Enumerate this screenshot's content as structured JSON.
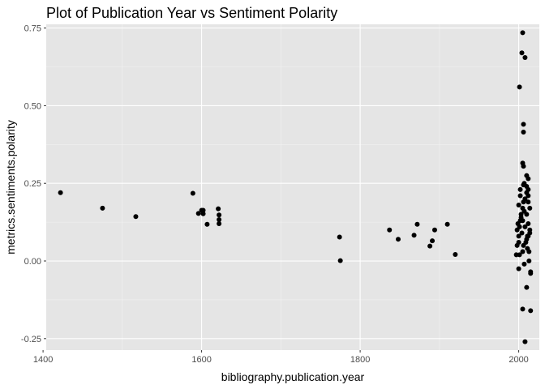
{
  "chart_data": {
    "type": "scatter",
    "title": "Plot of Publication Year vs Sentiment Polarity",
    "xlabel": "bibliography.publication.year",
    "ylabel": "metrics.sentiments.polarity",
    "xlim": [
      1404,
      2026
    ],
    "ylim": [
      -0.287,
      0.762
    ],
    "x_ticks": [
      1400,
      1600,
      1800,
      2000
    ],
    "x_tick_labels": [
      "1400",
      "1600",
      "1800",
      "2000"
    ],
    "y_ticks": [
      -0.25,
      0,
      0.25,
      0.5,
      0.75
    ],
    "y_tick_labels": [
      "-0.25",
      "0.00",
      "0.25",
      "0.50",
      "0.75"
    ],
    "grid": true,
    "legend": "none",
    "colors": {
      "panel_background": "#e5e5e5",
      "grid_major": "#ffffff",
      "grid_minor": "#f2f2f2",
      "point": "#000000",
      "tick_label": "#4d4d4d"
    },
    "series": [
      {
        "x": [
          1422,
          1475,
          1517,
          1589,
          1596,
          1600,
          1602,
          1602,
          1607,
          1621,
          1622,
          1622,
          1622,
          1774,
          1775,
          1837,
          1848,
          1868,
          1872,
          1888,
          1891,
          1894,
          1910,
          1920,
          2001,
          2004,
          2005,
          2008,
          2006,
          2006,
          2005,
          2006,
          2007,
          2006,
          2010,
          2012,
          1997,
          1998,
          2000,
          2001,
          2003,
          2005,
          2008,
          2010,
          2012,
          2014,
          2000,
          2005,
          2010,
          2014,
          2002,
          2007,
          2012,
          1999,
          2004,
          2009,
          2013,
          2001,
          2006,
          2011,
          2000,
          2003,
          2008,
          2012,
          2002,
          2006,
          2010,
          2014,
          1998,
          2005,
          2011,
          2000,
          2007,
          2013,
          2015,
          2010,
          2005,
          2015,
          2015,
          2008,
          2012,
          2012,
          2002,
          2010
        ],
        "y": [
          0.22,
          0.17,
          0.143,
          0.218,
          0.153,
          0.163,
          0.152,
          0.163,
          0.118,
          0.168,
          0.148,
          0.133,
          0.12,
          0.077,
          0.001,
          0.1,
          0.07,
          0.083,
          0.118,
          0.048,
          0.065,
          0.1,
          0.118,
          0.021,
          0.56,
          0.67,
          0.735,
          0.655,
          0.44,
          0.415,
          0.315,
          0.305,
          0.25,
          0.245,
          0.275,
          0.265,
          0.02,
          0.05,
          0.08,
          0.11,
          0.14,
          0.17,
          0.2,
          0.15,
          0.12,
          0.09,
          0.06,
          0.03,
          0.07,
          0.1,
          0.13,
          0.16,
          0.19,
          0.12,
          0.09,
          0.06,
          0.03,
          0.02,
          0.05,
          0.04,
          0.18,
          0.15,
          0.11,
          0.08,
          0.21,
          0.19,
          0.22,
          0.17,
          0.1,
          0.13,
          0.08,
          -0.025,
          -0.01,
          0.0,
          -0.04,
          -0.085,
          -0.155,
          -0.16,
          -0.035,
          -0.26,
          0.23,
          0.21,
          0.23,
          0.24
        ]
      }
    ]
  }
}
